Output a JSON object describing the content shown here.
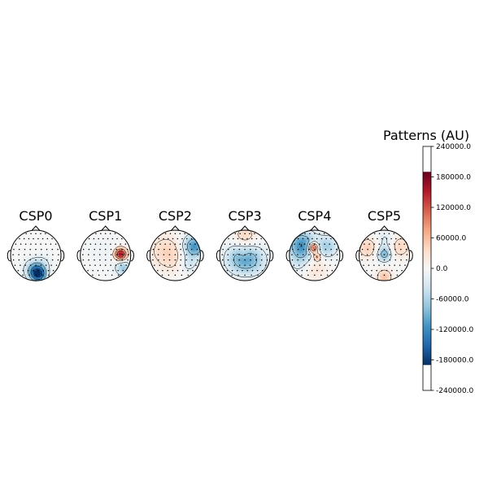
{
  "chart_data": {
    "type": "heatmap",
    "title": "Patterns (AU)",
    "components": [
      {
        "name": "CSP0",
        "blobs": [
          {
            "x": 0.1,
            "y": -0.75,
            "amp": -230000,
            "s": 0.2
          },
          {
            "x": -0.1,
            "y": -0.55,
            "amp": -90000,
            "s": 0.25
          },
          {
            "x": 0.25,
            "y": -0.35,
            "amp": -40000,
            "s": 0.25
          }
        ]
      },
      {
        "name": "CSP1",
        "blobs": [
          {
            "x": 0.6,
            "y": 0.05,
            "amp": 230000,
            "s": 0.16
          },
          {
            "x": 0.7,
            "y": -0.5,
            "amp": -90000,
            "s": 0.2
          },
          {
            "x": -0.1,
            "y": 0.2,
            "amp": -12000,
            "s": 0.5
          }
        ]
      },
      {
        "name": "CSP2",
        "blobs": [
          {
            "x": 0.75,
            "y": 0.35,
            "amp": -150000,
            "s": 0.3
          },
          {
            "x": -0.4,
            "y": 0.2,
            "amp": 45000,
            "s": 0.45
          },
          {
            "x": 0.0,
            "y": -0.2,
            "amp": 25000,
            "s": 0.4
          },
          {
            "x": 0.5,
            "y": -0.35,
            "amp": -50000,
            "s": 0.25
          }
        ]
      },
      {
        "name": "CSP3",
        "blobs": [
          {
            "x": -0.25,
            "y": -0.15,
            "amp": -85000,
            "s": 0.4
          },
          {
            "x": 0.3,
            "y": -0.2,
            "amp": -80000,
            "s": 0.4
          },
          {
            "x": 0.0,
            "y": 0.75,
            "amp": 55000,
            "s": 0.3
          },
          {
            "x": -0.05,
            "y": 0.05,
            "amp": 30000,
            "s": 0.12
          }
        ]
      },
      {
        "name": "CSP4",
        "blobs": [
          {
            "x": -0.05,
            "y": 0.3,
            "amp": 240000,
            "s": 0.14
          },
          {
            "x": -0.5,
            "y": 0.4,
            "amp": -150000,
            "s": 0.38
          },
          {
            "x": 0.5,
            "y": 0.35,
            "amp": -80000,
            "s": 0.3
          },
          {
            "x": 0.1,
            "y": -0.05,
            "amp": 120000,
            "s": 0.1
          },
          {
            "x": 0.0,
            "y": -0.5,
            "amp": 35000,
            "s": 0.35
          },
          {
            "x": -0.6,
            "y": -0.3,
            "amp": -40000,
            "s": 0.3
          }
        ]
      },
      {
        "name": "CSP5",
        "blobs": [
          {
            "x": 0.0,
            "y": 0.05,
            "amp": -120000,
            "s": 0.2
          },
          {
            "x": -0.65,
            "y": 0.3,
            "amp": 60000,
            "s": 0.28
          },
          {
            "x": 0.6,
            "y": 0.35,
            "amp": 55000,
            "s": 0.3
          },
          {
            "x": 0.0,
            "y": -0.85,
            "amp": 75000,
            "s": 0.2
          },
          {
            "x": 0.05,
            "y": 0.6,
            "amp": -40000,
            "s": 0.25
          }
        ]
      }
    ],
    "colorbar": {
      "label": "Patterns (AU)",
      "vmin": -240000,
      "vmax": 240000,
      "clip": 190000,
      "ticks": [
        "240000.0",
        "180000.0",
        "120000.0",
        "60000.0",
        "0.0",
        "-60000.0",
        "-120000.0",
        "-180000.0",
        "-240000.0"
      ],
      "tick_values": [
        240000,
        180000,
        120000,
        60000,
        0,
        -60000,
        -120000,
        -180000,
        -240000
      ],
      "colormap": "RdBu_r"
    }
  }
}
